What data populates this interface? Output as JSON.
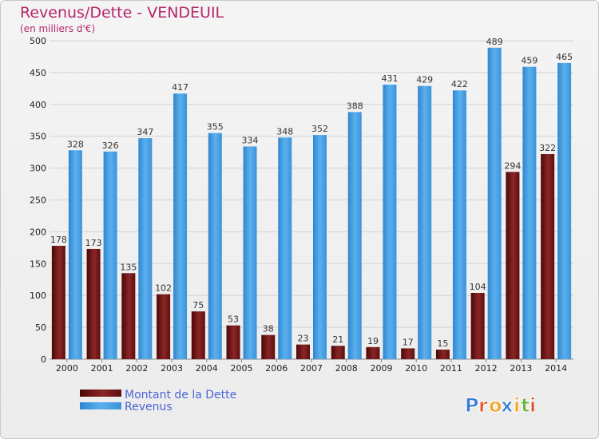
{
  "chart_data": {
    "type": "bar",
    "title": "Revenus/Dette - VENDEUIL",
    "subtitle": "(en milliers d'€)",
    "categories": [
      "2000",
      "2001",
      "2002",
      "2003",
      "2004",
      "2005",
      "2006",
      "2007",
      "2008",
      "2009",
      "2010",
      "2011",
      "2012",
      "2013",
      "2014"
    ],
    "series": [
      {
        "name": "Montant de la Dette",
        "color": "#7a1a1a",
        "values": [
          178,
          173,
          135,
          102,
          75,
          53,
          38,
          23,
          21,
          19,
          17,
          15,
          104,
          294,
          322
        ]
      },
      {
        "name": "Revenus",
        "color": "#3d99e0",
        "values": [
          328,
          326,
          347,
          417,
          355,
          334,
          348,
          352,
          388,
          431,
          429,
          422,
          489,
          459,
          465
        ]
      }
    ],
    "ylim": [
      0,
      500
    ],
    "yticks": [
      0,
      50,
      100,
      150,
      200,
      250,
      300,
      350,
      400,
      450,
      500
    ],
    "grid": true,
    "legend": "bottom-left"
  },
  "brand": {
    "letters": [
      "P",
      "r",
      "o",
      "x",
      "i",
      "t",
      "i"
    ],
    "colors": [
      "#3a7bd5",
      "#e0542c",
      "#f4a21b",
      "#3a7bd5",
      "#f4a21b",
      "#6db33f",
      "#e0542c"
    ]
  }
}
